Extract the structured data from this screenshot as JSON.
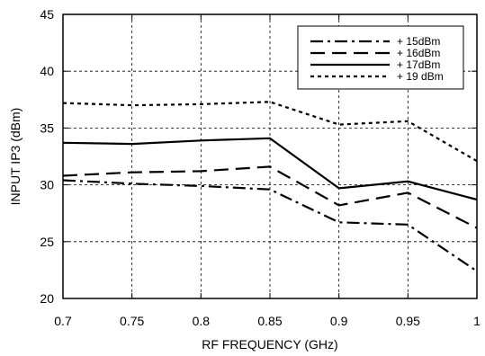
{
  "chart_data": {
    "type": "line",
    "title": "",
    "xlabel": "RF FREQUENCY (GHz)",
    "ylabel": "INPUT  IP3 (dBm)",
    "xlim": [
      0.7,
      1.0
    ],
    "ylim": [
      20,
      45
    ],
    "x_ticks": [
      "0.7",
      "0.75",
      "0.8",
      "0.85",
      "0.9",
      "0.95",
      "1"
    ],
    "y_ticks": [
      "20",
      "25",
      "30",
      "35",
      "40",
      "45"
    ],
    "grid": true,
    "legend_position": "top-right",
    "series": [
      {
        "name": "+ 15dBm",
        "style": "dash-dot",
        "x": [
          0.7,
          0.75,
          0.8,
          0.85,
          0.9,
          0.95,
          1.0
        ],
        "y": [
          30.4,
          30.1,
          29.9,
          29.6,
          26.7,
          26.5,
          22.4
        ]
      },
      {
        "name": "+ 16dBm",
        "style": "long-dash",
        "x": [
          0.7,
          0.75,
          0.8,
          0.85,
          0.9,
          0.95,
          1.0
        ],
        "y": [
          30.8,
          31.1,
          31.2,
          31.6,
          28.2,
          29.3,
          26.2
        ]
      },
      {
        "name": "+ 17dBm",
        "style": "solid",
        "x": [
          0.7,
          0.75,
          0.8,
          0.85,
          0.9,
          0.95,
          1.0
        ],
        "y": [
          33.7,
          33.6,
          33.9,
          34.1,
          29.7,
          30.3,
          28.7
        ]
      },
      {
        "name": "+ 19 dBm",
        "style": "dotted",
        "x": [
          0.7,
          0.75,
          0.8,
          0.85,
          0.9,
          0.95,
          1.0
        ],
        "y": [
          37.2,
          37.0,
          37.1,
          37.3,
          35.3,
          35.6,
          32.1
        ]
      }
    ]
  },
  "colors": {
    "line": "#000000",
    "grid": "#000000",
    "background": "#ffffff"
  }
}
